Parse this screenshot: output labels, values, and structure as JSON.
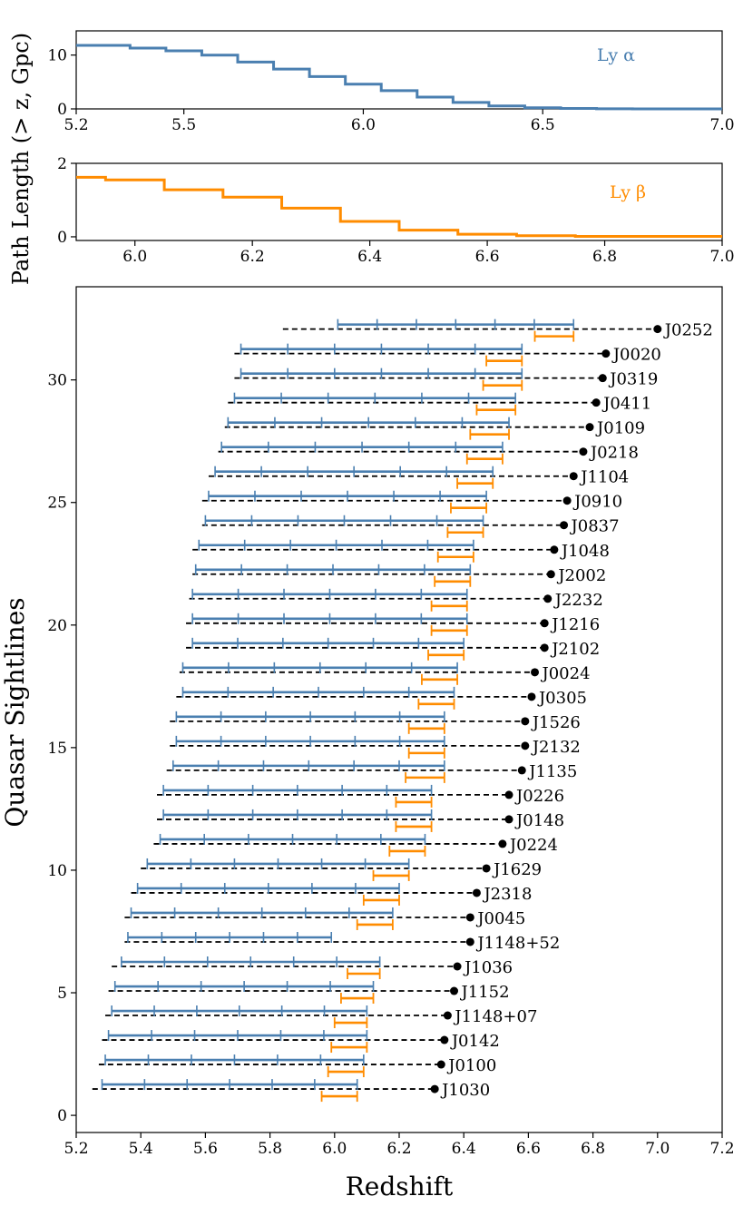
{
  "colors": {
    "lya": "#4a7fb0",
    "lyb": "#ff8c00",
    "dash": "#000000",
    "dot": "#000000"
  },
  "shared": {
    "ylabel_top": "Path Length (> z, Gpc)"
  },
  "chart_data": [
    {
      "type": "line",
      "title": "",
      "legend": "Ly α",
      "series": [
        {
          "name": "Ly α",
          "step_edges": [
            5.2,
            5.35,
            5.45,
            5.55,
            5.65,
            5.75,
            5.85,
            5.95,
            6.05,
            6.15,
            6.25,
            6.35,
            6.45,
            6.55,
            6.65,
            6.75,
            7.0
          ],
          "values": [
            11.8,
            11.3,
            10.8,
            10.0,
            8.7,
            7.4,
            6.0,
            4.6,
            3.4,
            2.2,
            1.2,
            0.55,
            0.22,
            0.08,
            0.03,
            0.0
          ]
        }
      ],
      "xlim": [
        5.2,
        7.0
      ],
      "ylim": [
        0,
        14.5
      ],
      "xticks": [
        "5.2",
        "5.5",
        "6.0",
        "6.5",
        "7.0"
      ],
      "xtick_values": [
        5.2,
        5.5,
        6.0,
        6.5,
        7.0
      ],
      "yticks": [
        "0",
        "10"
      ],
      "ytick_values": [
        0,
        10
      ]
    },
    {
      "type": "line",
      "title": "",
      "legend": "Ly β",
      "series": [
        {
          "name": "Ly β",
          "step_edges": [
            5.9,
            5.95,
            6.05,
            6.15,
            6.25,
            6.35,
            6.45,
            6.55,
            6.65,
            6.75,
            7.0
          ],
          "values": [
            1.62,
            1.55,
            1.28,
            1.08,
            0.78,
            0.42,
            0.18,
            0.07,
            0.03,
            0.01
          ]
        }
      ],
      "xlim": [
        5.9,
        7.0
      ],
      "ylim": [
        -0.1,
        2.0
      ],
      "xticks": [
        "6.0",
        "6.2",
        "6.4",
        "6.6",
        "6.8",
        "7.0"
      ],
      "xtick_values": [
        6.0,
        6.2,
        6.4,
        6.6,
        6.8,
        7.0
      ],
      "yticks": [
        "0",
        "2"
      ],
      "ytick_values": [
        0,
        2
      ]
    },
    {
      "type": "scatter",
      "title": "",
      "xlabel": "Redshift",
      "ylabel": "Quasar Sightlines",
      "xlim": [
        5.2,
        7.2
      ],
      "ylim": [
        -0.7,
        33.8
      ],
      "xticks": [
        "5.2",
        "5.4",
        "5.6",
        "5.8",
        "6.0",
        "6.2",
        "6.4",
        "6.6",
        "6.8",
        "7.0",
        "7.2"
      ],
      "xtick_values": [
        5.2,
        5.4,
        5.6,
        5.8,
        6.0,
        6.2,
        6.4,
        6.6,
        6.8,
        7.0,
        7.2
      ],
      "yticks": [
        "0",
        "5",
        "10",
        "15",
        "20",
        "25",
        "30"
      ],
      "ytick_values": [
        0,
        5,
        10,
        15,
        20,
        25,
        30
      ],
      "quasars": [
        {
          "name": "J1030",
          "y": 1,
          "z": 6.31,
          "dash_start": 5.25,
          "lya": [
            5.28,
            6.07
          ],
          "lyb": [
            5.96,
            6.07
          ]
        },
        {
          "name": "J0100",
          "y": 2,
          "z": 6.33,
          "dash_start": 5.27,
          "lya": [
            5.29,
            6.09
          ],
          "lyb": [
            5.98,
            6.09
          ]
        },
        {
          "name": "J0142",
          "y": 3,
          "z": 6.34,
          "dash_start": 5.28,
          "lya": [
            5.3,
            6.1
          ],
          "lyb": [
            5.99,
            6.1
          ]
        },
        {
          "name": "J1148+07",
          "y": 4,
          "z": 6.35,
          "dash_start": 5.29,
          "lya": [
            5.31,
            6.1
          ],
          "lyb": [
            6.0,
            6.1
          ]
        },
        {
          "name": "J1152",
          "y": 5,
          "z": 6.37,
          "dash_start": 5.3,
          "lya": [
            5.32,
            6.12
          ],
          "lyb": [
            6.02,
            6.12
          ]
        },
        {
          "name": "J1036",
          "y": 6,
          "z": 6.38,
          "dash_start": 5.31,
          "lya": [
            5.34,
            6.14
          ],
          "lyb": [
            6.04,
            6.14
          ]
        },
        {
          "name": "J1148+52",
          "y": 7,
          "z": 6.42,
          "dash_start": 5.35,
          "lya": [
            5.36,
            5.99
          ],
          "lyb": null
        },
        {
          "name": "J0045",
          "y": 8,
          "z": 6.42,
          "dash_start": 5.35,
          "lya": [
            5.37,
            6.18
          ],
          "lyb": [
            6.07,
            6.18
          ]
        },
        {
          "name": "J2318",
          "y": 9,
          "z": 6.44,
          "dash_start": 5.37,
          "lya": [
            5.39,
            6.2
          ],
          "lyb": [
            6.09,
            6.2
          ]
        },
        {
          "name": "J1629",
          "y": 10,
          "z": 6.47,
          "dash_start": 5.4,
          "lya": [
            5.42,
            6.23
          ],
          "lyb": [
            6.12,
            6.23
          ]
        },
        {
          "name": "J0224",
          "y": 11,
          "z": 6.52,
          "dash_start": 5.44,
          "lya": [
            5.46,
            6.28
          ],
          "lyb": [
            6.17,
            6.28
          ]
        },
        {
          "name": "J0148",
          "y": 12,
          "z": 6.54,
          "dash_start": 5.45,
          "lya": [
            5.47,
            6.3
          ],
          "lyb": [
            6.19,
            6.3
          ]
        },
        {
          "name": "J0226",
          "y": 13,
          "z": 6.54,
          "dash_start": 5.45,
          "lya": [
            5.47,
            6.3
          ],
          "lyb": [
            6.19,
            6.3
          ]
        },
        {
          "name": "J1135",
          "y": 14,
          "z": 6.58,
          "dash_start": 5.48,
          "lya": [
            5.5,
            6.34
          ],
          "lyb": [
            6.22,
            6.34
          ]
        },
        {
          "name": "J2132",
          "y": 15,
          "z": 6.59,
          "dash_start": 5.49,
          "lya": [
            5.51,
            6.34
          ],
          "lyb": [
            6.23,
            6.34
          ]
        },
        {
          "name": "J1526",
          "y": 16,
          "z": 6.59,
          "dash_start": 5.49,
          "lya": [
            5.51,
            6.34
          ],
          "lyb": [
            6.23,
            6.34
          ]
        },
        {
          "name": "J0305",
          "y": 17,
          "z": 6.61,
          "dash_start": 5.51,
          "lya": [
            5.53,
            6.37
          ],
          "lyb": [
            6.26,
            6.37
          ]
        },
        {
          "name": "J0024",
          "y": 18,
          "z": 6.62,
          "dash_start": 5.52,
          "lya": [
            5.53,
            6.38
          ],
          "lyb": [
            6.27,
            6.38
          ]
        },
        {
          "name": "J2102",
          "y": 19,
          "z": 6.65,
          "dash_start": 5.54,
          "lya": [
            5.56,
            6.4
          ],
          "lyb": [
            6.29,
            6.4
          ]
        },
        {
          "name": "J1216",
          "y": 20,
          "z": 6.65,
          "dash_start": 5.54,
          "lya": [
            5.56,
            6.41
          ],
          "lyb": [
            6.3,
            6.41
          ]
        },
        {
          "name": "J2232",
          "y": 21,
          "z": 6.66,
          "dash_start": 5.55,
          "lya": [
            5.56,
            6.41
          ],
          "lyb": [
            6.3,
            6.41
          ]
        },
        {
          "name": "J2002",
          "y": 22,
          "z": 6.67,
          "dash_start": 5.56,
          "lya": [
            5.57,
            6.42
          ],
          "lyb": [
            6.31,
            6.42
          ]
        },
        {
          "name": "J1048",
          "y": 23,
          "z": 6.68,
          "dash_start": 5.56,
          "lya": [
            5.58,
            6.43
          ],
          "lyb": [
            6.32,
            6.43
          ]
        },
        {
          "name": "J0837",
          "y": 24,
          "z": 6.71,
          "dash_start": 5.59,
          "lya": [
            5.6,
            6.46
          ],
          "lyb": [
            6.35,
            6.46
          ]
        },
        {
          "name": "J0910",
          "y": 25,
          "z": 6.72,
          "dash_start": 5.59,
          "lya": [
            5.61,
            6.47
          ],
          "lyb": [
            6.36,
            6.47
          ]
        },
        {
          "name": "J1104",
          "y": 26,
          "z": 6.74,
          "dash_start": 5.61,
          "lya": [
            5.63,
            6.49
          ],
          "lyb": [
            6.38,
            6.49
          ]
        },
        {
          "name": "J0218",
          "y": 27,
          "z": 6.77,
          "dash_start": 5.64,
          "lya": [
            5.65,
            6.52
          ],
          "lyb": [
            6.41,
            6.52
          ]
        },
        {
          "name": "J0109",
          "y": 28,
          "z": 6.79,
          "dash_start": 5.66,
          "lya": [
            5.67,
            6.54
          ],
          "lyb": [
            6.42,
            6.54
          ]
        },
        {
          "name": "J0411",
          "y": 29,
          "z": 6.81,
          "dash_start": 5.67,
          "lya": [
            5.69,
            6.56
          ],
          "lyb": [
            6.44,
            6.56
          ]
        },
        {
          "name": "J0319",
          "y": 30,
          "z": 6.83,
          "dash_start": 5.69,
          "lya": [
            5.71,
            6.58
          ],
          "lyb": [
            6.46,
            6.58
          ]
        },
        {
          "name": "J0020",
          "y": 31,
          "z": 6.84,
          "dash_start": 5.69,
          "lya": [
            5.71,
            6.58
          ],
          "lyb": [
            6.47,
            6.58
          ]
        },
        {
          "name": "J0252",
          "y": 32,
          "z": 7.0,
          "dash_start": 5.84,
          "lya": [
            6.01,
            6.74
          ],
          "lyb": [
            6.62,
            6.74
          ]
        }
      ]
    }
  ]
}
